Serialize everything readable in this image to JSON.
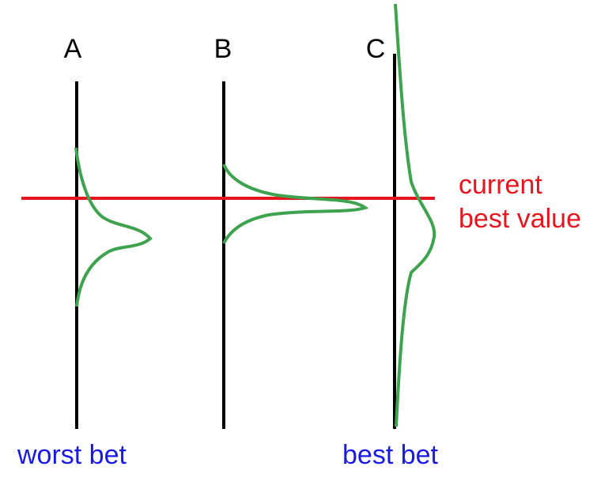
{
  "labels": [
    "A",
    "B",
    "C"
  ],
  "line_label": [
    "current",
    "best value"
  ],
  "bottom_labels": [
    "worst bet",
    "best bet"
  ]
}
